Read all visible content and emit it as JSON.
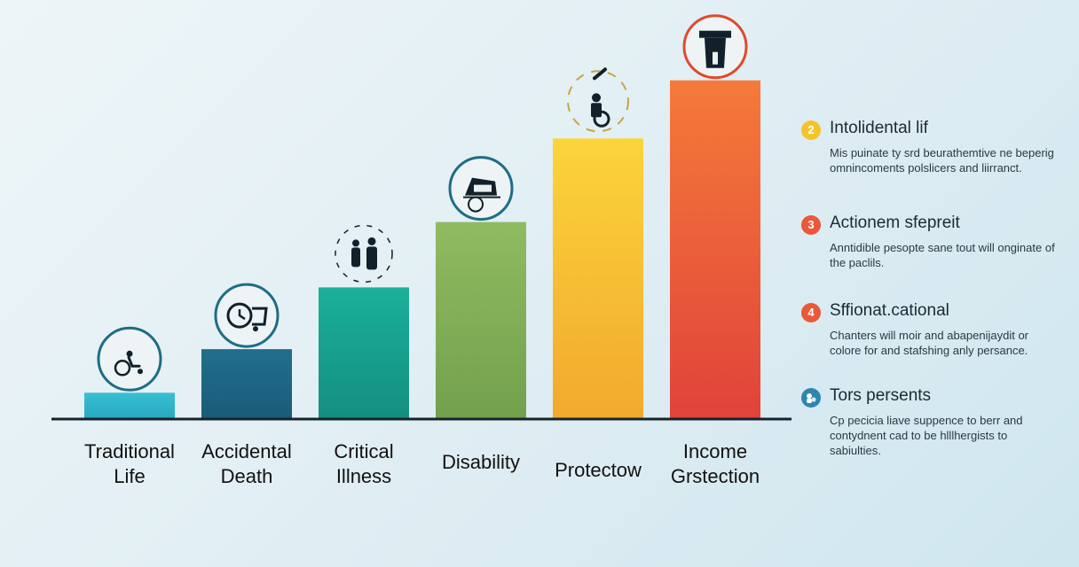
{
  "chart_data": {
    "type": "bar",
    "title": "",
    "xlabel": "",
    "ylabel": "",
    "ylim": [
      0,
      100
    ],
    "categories": [
      "Traditional Life",
      "Accidental Death",
      "Critical Illness",
      "Disability",
      "Protectow",
      "Income Grstection"
    ],
    "category_labels": [
      "Traditional\nLife",
      "Accidental\nDeath",
      "Critical\nIllness",
      "Disability",
      "Protectow",
      "Income\nGrstection"
    ],
    "values": [
      7,
      19,
      36,
      54,
      77,
      93
    ],
    "bar_colors": [
      "#35b7cc",
      "#1f6a86",
      "#17a48f",
      "#86b05a",
      "#f7c234",
      "#ea5838"
    ],
    "bar_gradients": [
      [
        "#38bfd2",
        "#2aa9c2"
      ],
      [
        "#216f8d",
        "#1a5c7a"
      ],
      [
        "#1ab09a",
        "#148f80"
      ],
      [
        "#90bb61",
        "#73a04d"
      ],
      [
        "#fbd43a",
        "#f2a92e"
      ],
      [
        "#f57a3a",
        "#e0433a"
      ]
    ],
    "icons": [
      "wheelchair-person-icon",
      "clock-cart-icon",
      "family-cycle-icon",
      "shield-accident-icon",
      "wheelchair-recovery-icon",
      "income-protection-icon"
    ],
    "grid": false
  },
  "legend": [
    {
      "badge": "2",
      "color": "#f5c32c",
      "title": "Intolidental lif",
      "desc": "Mis puinate ty srd beurathemtive ne beperig omnincoments polslicers and liirranct."
    },
    {
      "badge": "3",
      "color": "#ea5838",
      "title": "Actionem sfepreit",
      "desc": "Anntidible pesopte sane tout will onginate of the paclils."
    },
    {
      "badge": "4",
      "color": "#ea5838",
      "title": "Sffionat.cational",
      "desc": "Chanters will moir and abapenijaydit or colore for and stafshing anly persance."
    },
    {
      "badge": "",
      "color": "#2c86b2",
      "title": "Tors persents",
      "desc": "Cp pecicia liave suppence to berr and contydnent cad to be hlllhergists to sabiulties."
    }
  ]
}
